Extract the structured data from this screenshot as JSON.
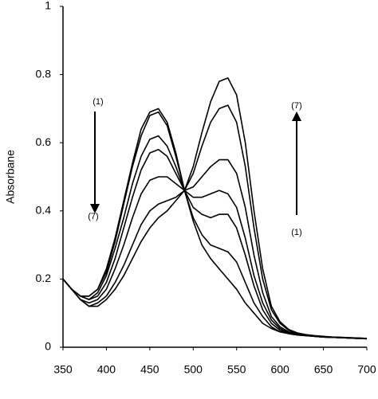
{
  "chart_data": {
    "type": "line",
    "y_label": "Absorbane",
    "x": [
      350,
      360,
      370,
      380,
      390,
      400,
      410,
      420,
      430,
      440,
      450,
      460,
      470,
      480,
      490,
      500,
      510,
      520,
      530,
      540,
      550,
      560,
      570,
      580,
      590,
      600,
      610,
      620,
      630,
      640,
      650,
      660,
      670,
      680,
      690,
      700
    ],
    "series": [
      {
        "color": "#000000",
        "values": [
          0.2,
          0.17,
          0.15,
          0.15,
          0.17,
          0.23,
          0.32,
          0.43,
          0.54,
          0.64,
          0.69,
          0.7,
          0.66,
          0.57,
          0.46,
          0.37,
          0.3,
          0.26,
          0.23,
          0.2,
          0.17,
          0.13,
          0.1,
          0.07,
          0.055,
          0.045,
          0.04,
          0.036,
          0.034,
          0.032,
          0.03,
          0.029,
          0.028,
          0.027,
          0.026,
          0.025
        ]
      },
      {
        "color": "#000000",
        "values": [
          0.2,
          0.17,
          0.15,
          0.15,
          0.17,
          0.22,
          0.31,
          0.42,
          0.53,
          0.62,
          0.68,
          0.69,
          0.65,
          0.56,
          0.46,
          0.38,
          0.33,
          0.3,
          0.29,
          0.28,
          0.25,
          0.19,
          0.13,
          0.09,
          0.06,
          0.045,
          0.04,
          0.036,
          0.034,
          0.032,
          0.03,
          0.029,
          0.028,
          0.027,
          0.026,
          0.025
        ]
      },
      {
        "color": "#000000",
        "values": [
          0.2,
          0.17,
          0.15,
          0.14,
          0.16,
          0.21,
          0.29,
          0.38,
          0.48,
          0.56,
          0.61,
          0.62,
          0.59,
          0.53,
          0.46,
          0.41,
          0.39,
          0.38,
          0.39,
          0.39,
          0.35,
          0.27,
          0.18,
          0.11,
          0.07,
          0.05,
          0.04,
          0.036,
          0.034,
          0.032,
          0.03,
          0.029,
          0.028,
          0.027,
          0.026,
          0.025
        ]
      },
      {
        "color": "#000000",
        "values": [
          0.2,
          0.17,
          0.15,
          0.14,
          0.15,
          0.19,
          0.26,
          0.35,
          0.44,
          0.52,
          0.57,
          0.58,
          0.56,
          0.51,
          0.46,
          0.44,
          0.44,
          0.45,
          0.46,
          0.45,
          0.41,
          0.32,
          0.21,
          0.13,
          0.08,
          0.055,
          0.042,
          0.037,
          0.034,
          0.032,
          0.03,
          0.029,
          0.028,
          0.027,
          0.026,
          0.025
        ]
      },
      {
        "color": "#000000",
        "values": [
          0.2,
          0.17,
          0.14,
          0.13,
          0.14,
          0.17,
          0.23,
          0.3,
          0.38,
          0.45,
          0.49,
          0.5,
          0.5,
          0.48,
          0.46,
          0.47,
          0.5,
          0.53,
          0.55,
          0.55,
          0.51,
          0.41,
          0.27,
          0.16,
          0.09,
          0.06,
          0.045,
          0.038,
          0.035,
          0.032,
          0.03,
          0.029,
          0.028,
          0.027,
          0.026,
          0.025
        ]
      },
      {
        "color": "#000000",
        "values": [
          0.2,
          0.17,
          0.14,
          0.12,
          0.13,
          0.15,
          0.19,
          0.24,
          0.3,
          0.36,
          0.4,
          0.42,
          0.43,
          0.44,
          0.46,
          0.51,
          0.59,
          0.66,
          0.7,
          0.71,
          0.66,
          0.53,
          0.35,
          0.2,
          0.11,
          0.07,
          0.05,
          0.04,
          0.036,
          0.033,
          0.031,
          0.03,
          0.029,
          0.028,
          0.027,
          0.026
        ]
      },
      {
        "color": "#000000",
        "values": [
          0.2,
          0.17,
          0.14,
          0.12,
          0.12,
          0.14,
          0.17,
          0.21,
          0.26,
          0.31,
          0.35,
          0.38,
          0.4,
          0.43,
          0.46,
          0.53,
          0.63,
          0.72,
          0.78,
          0.79,
          0.74,
          0.6,
          0.4,
          0.23,
          0.12,
          0.075,
          0.052,
          0.042,
          0.037,
          0.034,
          0.032,
          0.03,
          0.029,
          0.028,
          0.027,
          0.026
        ]
      }
    ],
    "annotations": [
      "(1)",
      "(7)",
      "(7)",
      "(1)"
    ],
    "xlim": [
      350,
      700
    ],
    "ylim": [
      0,
      1
    ],
    "xticks": [
      350,
      400,
      450,
      500,
      550,
      600,
      650,
      700
    ],
    "yticks": [
      0,
      0.2,
      0.4,
      0.6,
      0.8,
      1
    ],
    "grid": false
  }
}
